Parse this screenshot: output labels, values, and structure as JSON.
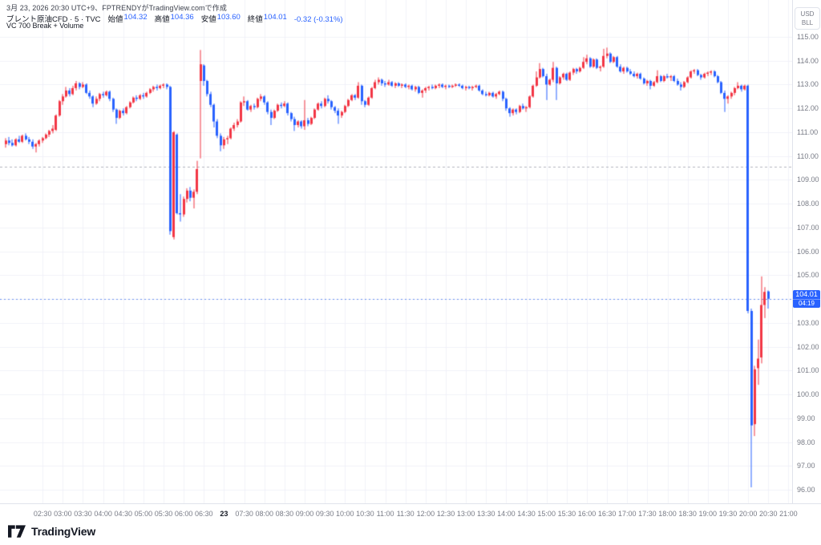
{
  "header": {
    "attribution": "3月 23, 2026 20:30 UTC+9、FPTRENDYがTradingView.comで作成",
    "legend": {
      "title": "ブレント原油CFD · 5 · TVC",
      "open_label": "始値",
      "open": "104.32",
      "high_label": "高値",
      "high": "104.36",
      "low_label": "安値",
      "low": "103.60",
      "close_label": "終値",
      "close": "104.01",
      "change": "-0.32 (-0.31%)"
    },
    "indicator": "VC 700 Break + Volume"
  },
  "axes": {
    "currency": "USD",
    "unit": "BLL",
    "price_labels": [
      "115.00",
      "114.00",
      "113.00",
      "112.00",
      "111.00",
      "110.00",
      "109.00",
      "108.00",
      "107.00",
      "106.00",
      "105.00",
      "104.00",
      "103.00",
      "102.00",
      "101.00",
      "100.00",
      "99.00",
      "98.00",
      "97.00",
      "96.00"
    ],
    "time_labels": [
      "02:30",
      "03:00",
      "03:30",
      "04:00",
      "04:30",
      "05:00",
      "05:30",
      "06:00",
      "06:30",
      "23",
      "07:30",
      "08:00",
      "08:30",
      "09:00",
      "09:30",
      "10:00",
      "10:30",
      "11:00",
      "11:30",
      "12:00",
      "12:30",
      "13:00",
      "13:30",
      "14:00",
      "14:30",
      "15:00",
      "15:30",
      "16:00",
      "16:30",
      "17:00",
      "17:30",
      "18:00",
      "18:30",
      "19:00",
      "19:30",
      "20:00",
      "20:30",
      "21:00"
    ],
    "emphasis_index": 9
  },
  "price_line": {
    "value": "104.01",
    "countdown": "04:19"
  },
  "footer": {
    "logo_text": "TradingView"
  },
  "chart_data": {
    "type": "candlestick",
    "title": "ブレント原油CFD 5分足",
    "interval_min": 5,
    "ylabel": "USD/BLL",
    "ylim": [
      96,
      115
    ],
    "grid": true,
    "up_color": "#f23645",
    "down_color": "#2962ff",
    "level_line_price": 109.55,
    "last_price": 104.01,
    "candles_ohlc": [
      [
        110.5,
        110.75,
        110.35,
        110.65
      ],
      [
        110.65,
        110.8,
        110.45,
        110.55
      ],
      [
        110.55,
        110.7,
        110.4,
        110.45
      ],
      [
        110.45,
        110.75,
        110.4,
        110.7
      ],
      [
        110.7,
        110.85,
        110.55,
        110.6
      ],
      [
        110.6,
        110.9,
        110.55,
        110.85
      ],
      [
        110.85,
        110.95,
        110.65,
        110.7
      ],
      [
        110.7,
        110.8,
        110.5,
        110.6
      ],
      [
        110.6,
        110.7,
        110.3,
        110.4
      ],
      [
        110.4,
        110.55,
        110.15,
        110.5
      ],
      [
        110.5,
        110.7,
        110.4,
        110.65
      ],
      [
        110.65,
        110.8,
        110.55,
        110.75
      ],
      [
        110.75,
        110.95,
        110.7,
        110.9
      ],
      [
        110.9,
        111.1,
        110.8,
        111.05
      ],
      [
        111.05,
        111.3,
        110.95,
        111.15
      ],
      [
        111.1,
        111.75,
        111.05,
        111.7
      ],
      [
        111.7,
        112.35,
        111.65,
        112.3
      ],
      [
        112.3,
        112.6,
        112.15,
        112.5
      ],
      [
        112.5,
        112.9,
        112.45,
        112.75
      ],
      [
        112.75,
        112.85,
        112.5,
        112.6
      ],
      [
        112.6,
        112.95,
        112.55,
        112.85
      ],
      [
        112.85,
        113.15,
        112.75,
        113.05
      ],
      [
        113.05,
        113.1,
        112.8,
        112.9
      ],
      [
        112.9,
        113.1,
        112.85,
        113.0
      ],
      [
        113.0,
        113.05,
        112.6,
        112.65
      ],
      [
        112.65,
        112.75,
        112.4,
        112.5
      ],
      [
        112.5,
        112.55,
        112.05,
        112.2
      ],
      [
        112.2,
        112.5,
        112.15,
        112.4
      ],
      [
        112.4,
        112.65,
        112.3,
        112.6
      ],
      [
        112.6,
        112.7,
        112.45,
        112.55
      ],
      [
        112.55,
        112.75,
        112.5,
        112.7
      ],
      [
        112.7,
        112.75,
        112.3,
        112.4
      ],
      [
        112.4,
        112.45,
        111.85,
        111.95
      ],
      [
        111.95,
        112.0,
        111.35,
        111.6
      ],
      [
        111.6,
        111.95,
        111.55,
        111.9
      ],
      [
        111.9,
        112.0,
        111.7,
        111.8
      ],
      [
        111.8,
        112.1,
        111.75,
        112.05
      ],
      [
        112.05,
        112.3,
        112.0,
        112.25
      ],
      [
        112.25,
        112.5,
        112.2,
        112.45
      ],
      [
        112.45,
        112.55,
        112.3,
        112.4
      ],
      [
        112.4,
        112.6,
        112.35,
        112.55
      ],
      [
        112.55,
        112.65,
        112.4,
        112.5
      ],
      [
        112.5,
        112.7,
        112.45,
        112.65
      ],
      [
        112.65,
        112.85,
        112.6,
        112.8
      ],
      [
        112.8,
        112.95,
        112.7,
        112.9
      ],
      [
        112.9,
        113.0,
        112.75,
        112.85
      ],
      [
        112.85,
        113.0,
        112.8,
        112.95
      ],
      [
        112.95,
        113.05,
        112.85,
        113.0
      ],
      [
        113.0,
        113.05,
        112.8,
        112.9
      ],
      [
        112.9,
        112.95,
        106.7,
        106.85
      ],
      [
        106.6,
        111.05,
        106.5,
        111.0
      ],
      [
        110.9,
        110.95,
        107.55,
        107.6
      ],
      [
        107.6,
        108.4,
        107.25,
        107.55
      ],
      [
        107.55,
        108.3,
        107.45,
        108.2
      ],
      [
        108.2,
        108.65,
        108.05,
        108.55
      ],
      [
        108.55,
        108.7,
        108.1,
        108.25
      ],
      [
        108.25,
        108.6,
        107.8,
        108.5
      ],
      [
        108.5,
        109.8,
        108.4,
        109.45
      ],
      [
        113.15,
        114.45,
        109.9,
        113.85
      ],
      [
        113.8,
        113.85,
        112.95,
        113.15
      ],
      [
        113.15,
        113.2,
        112.5,
        112.6
      ],
      [
        112.6,
        112.7,
        112.05,
        112.15
      ],
      [
        112.15,
        112.2,
        111.2,
        111.45
      ],
      [
        111.45,
        111.55,
        110.75,
        110.85
      ],
      [
        110.85,
        110.95,
        110.2,
        110.45
      ],
      [
        110.45,
        110.8,
        110.3,
        110.7
      ],
      [
        110.7,
        110.85,
        110.5,
        110.75
      ],
      [
        110.75,
        111.2,
        110.7,
        111.15
      ],
      [
        111.15,
        111.4,
        111.05,
        111.3
      ],
      [
        111.3,
        111.55,
        111.2,
        111.45
      ],
      [
        111.45,
        112.3,
        111.4,
        112.25
      ],
      [
        112.25,
        112.5,
        112.1,
        112.3
      ],
      [
        112.3,
        112.35,
        111.9,
        111.95
      ],
      [
        111.95,
        112.15,
        111.85,
        112.1
      ],
      [
        112.1,
        112.2,
        111.95,
        112.05
      ],
      [
        112.05,
        112.45,
        112.0,
        112.4
      ],
      [
        112.4,
        112.6,
        112.3,
        112.5
      ],
      [
        112.5,
        112.55,
        112.15,
        112.25
      ],
      [
        112.25,
        112.3,
        111.75,
        111.85
      ],
      [
        111.85,
        111.95,
        111.3,
        111.6
      ],
      [
        111.6,
        111.95,
        111.55,
        111.9
      ],
      [
        111.9,
        112.2,
        111.85,
        112.15
      ],
      [
        112.15,
        112.25,
        112.0,
        112.1
      ],
      [
        112.1,
        112.3,
        112.05,
        112.2
      ],
      [
        112.2,
        112.25,
        111.7,
        111.8
      ],
      [
        111.8,
        111.85,
        111.45,
        111.55
      ],
      [
        111.55,
        111.65,
        111.05,
        111.3
      ],
      [
        111.3,
        111.5,
        111.2,
        111.45
      ],
      [
        111.45,
        111.5,
        111.15,
        111.25
      ],
      [
        111.25,
        112.35,
        111.1,
        111.5
      ],
      [
        111.5,
        111.6,
        111.25,
        111.35
      ],
      [
        111.35,
        111.65,
        111.3,
        111.6
      ],
      [
        111.6,
        112.0,
        111.55,
        111.95
      ],
      [
        111.95,
        112.25,
        111.9,
        112.2
      ],
      [
        112.2,
        112.3,
        112.0,
        112.1
      ],
      [
        112.1,
        112.45,
        112.05,
        112.4
      ],
      [
        112.4,
        112.55,
        112.2,
        112.3
      ],
      [
        112.3,
        112.35,
        111.95,
        112.05
      ],
      [
        112.05,
        112.1,
        111.8,
        111.9
      ],
      [
        111.9,
        112.0,
        111.35,
        111.7
      ],
      [
        111.7,
        111.9,
        111.6,
        111.85
      ],
      [
        111.85,
        112.15,
        111.8,
        112.1
      ],
      [
        112.1,
        112.4,
        112.05,
        112.35
      ],
      [
        112.35,
        112.6,
        112.3,
        112.55
      ],
      [
        112.55,
        112.6,
        112.35,
        112.45
      ],
      [
        112.45,
        113.1,
        112.4,
        112.95
      ],
      [
        112.95,
        113.0,
        112.15,
        112.3
      ],
      [
        112.3,
        112.35,
        112.05,
        112.15
      ],
      [
        112.15,
        112.5,
        112.1,
        112.45
      ],
      [
        112.45,
        112.9,
        112.4,
        112.85
      ],
      [
        112.85,
        113.2,
        112.8,
        113.1
      ],
      [
        113.1,
        113.3,
        113.0,
        113.2
      ],
      [
        113.2,
        113.25,
        112.95,
        113.05
      ],
      [
        113.05,
        113.15,
        112.9,
        113.0
      ],
      [
        113.0,
        113.2,
        112.95,
        113.1
      ],
      [
        113.1,
        113.15,
        112.9,
        112.95
      ],
      [
        112.95,
        113.1,
        112.85,
        113.05
      ],
      [
        113.05,
        113.1,
        112.9,
        112.95
      ],
      [
        112.95,
        113.05,
        112.85,
        113.0
      ],
      [
        113.0,
        113.05,
        112.85,
        112.9
      ],
      [
        112.9,
        113.0,
        112.8,
        112.95
      ],
      [
        112.95,
        113.0,
        112.75,
        112.8
      ],
      [
        112.8,
        112.95,
        112.7,
        112.9
      ],
      [
        112.9,
        112.95,
        112.6,
        112.65
      ],
      [
        112.65,
        112.8,
        112.45,
        112.75
      ],
      [
        112.75,
        112.9,
        112.65,
        112.85
      ],
      [
        112.85,
        112.95,
        112.75,
        112.9
      ],
      [
        112.9,
        113.0,
        112.8,
        112.85
      ],
      [
        112.85,
        113.0,
        112.8,
        112.95
      ],
      [
        112.95,
        113.05,
        112.85,
        113.0
      ],
      [
        113.0,
        113.05,
        112.85,
        112.9
      ],
      [
        112.9,
        113.0,
        112.8,
        112.95
      ],
      [
        112.95,
        113.0,
        112.85,
        112.9
      ],
      [
        112.9,
        113.0,
        112.85,
        112.95
      ],
      [
        112.95,
        113.05,
        112.9,
        113.0
      ],
      [
        113.0,
        113.05,
        112.9,
        112.95
      ],
      [
        112.95,
        113.0,
        112.8,
        112.85
      ],
      [
        112.85,
        112.95,
        112.75,
        112.9
      ],
      [
        112.9,
        112.95,
        112.8,
        112.85
      ],
      [
        112.85,
        112.95,
        112.75,
        112.9
      ],
      [
        112.9,
        113.0,
        112.85,
        112.95
      ],
      [
        112.95,
        113.0,
        112.7,
        112.75
      ],
      [
        112.75,
        112.8,
        112.55,
        112.6
      ],
      [
        112.6,
        112.7,
        112.5,
        112.55
      ],
      [
        112.55,
        112.7,
        112.5,
        112.65
      ],
      [
        112.65,
        112.7,
        112.45,
        112.5
      ],
      [
        112.5,
        112.65,
        112.4,
        112.6
      ],
      [
        112.6,
        112.75,
        112.55,
        112.7
      ],
      [
        112.7,
        112.75,
        112.3,
        112.4
      ],
      [
        112.4,
        112.45,
        111.9,
        112.0
      ],
      [
        112.0,
        112.05,
        111.65,
        111.8
      ],
      [
        111.8,
        112.0,
        111.7,
        111.95
      ],
      [
        111.95,
        112.0,
        111.75,
        111.85
      ],
      [
        111.85,
        112.15,
        111.8,
        112.1
      ],
      [
        112.1,
        112.2,
        111.95,
        112.0
      ],
      [
        112.0,
        112.1,
        111.85,
        112.05
      ],
      [
        112.05,
        112.55,
        112.0,
        112.5
      ],
      [
        112.5,
        113.0,
        112.45,
        112.95
      ],
      [
        112.95,
        113.55,
        112.9,
        113.3
      ],
      [
        113.3,
        113.9,
        113.25,
        113.65
      ],
      [
        113.65,
        113.7,
        113.3,
        113.35
      ],
      [
        113.35,
        113.45,
        112.35,
        113.0
      ],
      [
        113.0,
        113.25,
        112.95,
        113.2
      ],
      [
        113.2,
        113.95,
        113.1,
        113.7
      ],
      [
        113.7,
        113.75,
        112.35,
        113.05
      ],
      [
        113.05,
        113.35,
        113.0,
        113.3
      ],
      [
        113.3,
        113.5,
        113.2,
        113.45
      ],
      [
        113.45,
        113.5,
        113.15,
        113.2
      ],
      [
        113.2,
        113.55,
        113.15,
        113.5
      ],
      [
        113.5,
        113.7,
        113.4,
        113.65
      ],
      [
        113.65,
        113.7,
        113.45,
        113.55
      ],
      [
        113.55,
        113.75,
        113.5,
        113.7
      ],
      [
        113.7,
        114.15,
        113.65,
        113.95
      ],
      [
        113.95,
        114.25,
        113.85,
        114.1
      ],
      [
        114.1,
        114.15,
        113.7,
        113.75
      ],
      [
        113.75,
        114.1,
        113.7,
        114.05
      ],
      [
        114.05,
        114.1,
        113.65,
        113.7
      ],
      [
        113.7,
        113.8,
        113.55,
        113.75
      ],
      [
        113.75,
        114.5,
        113.7,
        114.2
      ],
      [
        114.2,
        114.55,
        114.1,
        114.3
      ],
      [
        114.3,
        114.35,
        113.9,
        113.95
      ],
      [
        113.95,
        114.2,
        113.9,
        114.15
      ],
      [
        114.15,
        114.2,
        113.7,
        113.75
      ],
      [
        113.75,
        113.85,
        113.5,
        113.55
      ],
      [
        113.55,
        113.75,
        113.45,
        113.7
      ],
      [
        113.7,
        113.75,
        113.5,
        113.55
      ],
      [
        113.55,
        113.65,
        113.4,
        113.45
      ],
      [
        113.45,
        113.55,
        113.3,
        113.35
      ],
      [
        113.35,
        113.5,
        113.25,
        113.45
      ],
      [
        113.45,
        113.5,
        113.2,
        113.25
      ],
      [
        113.25,
        113.3,
        113.0,
        113.05
      ],
      [
        113.05,
        113.2,
        112.95,
        113.15
      ],
      [
        113.15,
        113.2,
        112.8,
        112.95
      ],
      [
        112.95,
        113.15,
        112.9,
        113.1
      ],
      [
        113.1,
        113.6,
        113.05,
        113.35
      ],
      [
        113.35,
        113.4,
        113.1,
        113.15
      ],
      [
        113.15,
        113.4,
        113.1,
        113.35
      ],
      [
        113.35,
        113.45,
        113.25,
        113.3
      ],
      [
        113.3,
        113.4,
        113.15,
        113.35
      ],
      [
        113.35,
        113.4,
        113.1,
        113.15
      ],
      [
        113.15,
        113.25,
        112.95,
        113.0
      ],
      [
        113.0,
        113.1,
        112.75,
        112.9
      ],
      [
        112.9,
        113.15,
        112.85,
        113.1
      ],
      [
        113.1,
        113.35,
        113.05,
        113.3
      ],
      [
        113.3,
        113.6,
        113.25,
        113.55
      ],
      [
        113.55,
        113.65,
        113.45,
        113.6
      ],
      [
        113.6,
        113.65,
        113.35,
        113.4
      ],
      [
        113.4,
        113.45,
        113.2,
        113.3
      ],
      [
        113.3,
        113.5,
        113.25,
        113.45
      ],
      [
        113.45,
        113.55,
        113.35,
        113.5
      ],
      [
        113.5,
        113.6,
        113.4,
        113.55
      ],
      [
        113.55,
        113.6,
        113.3,
        113.35
      ],
      [
        113.35,
        113.4,
        113.05,
        113.1
      ],
      [
        113.1,
        113.15,
        112.6,
        112.65
      ],
      [
        112.65,
        112.75,
        111.85,
        112.4
      ],
      [
        112.4,
        112.55,
        112.2,
        112.5
      ],
      [
        112.5,
        112.7,
        112.4,
        112.65
      ],
      [
        112.65,
        112.9,
        112.55,
        112.85
      ],
      [
        112.85,
        113.1,
        112.8,
        112.95
      ],
      [
        112.95,
        113.0,
        112.7,
        112.8
      ],
      [
        112.8,
        113.0,
        112.75,
        112.95
      ],
      [
        112.95,
        113.0,
        103.4,
        103.5
      ],
      [
        103.5,
        103.6,
        96.1,
        98.7
      ],
      [
        98.75,
        101.2,
        98.25,
        101.05
      ],
      [
        101.1,
        102.3,
        100.4,
        101.5
      ],
      [
        101.55,
        104.95,
        101.3,
        103.75
      ],
      [
        103.75,
        104.5,
        103.2,
        104.3
      ],
      [
        104.32,
        104.36,
        103.6,
        104.01
      ]
    ]
  }
}
